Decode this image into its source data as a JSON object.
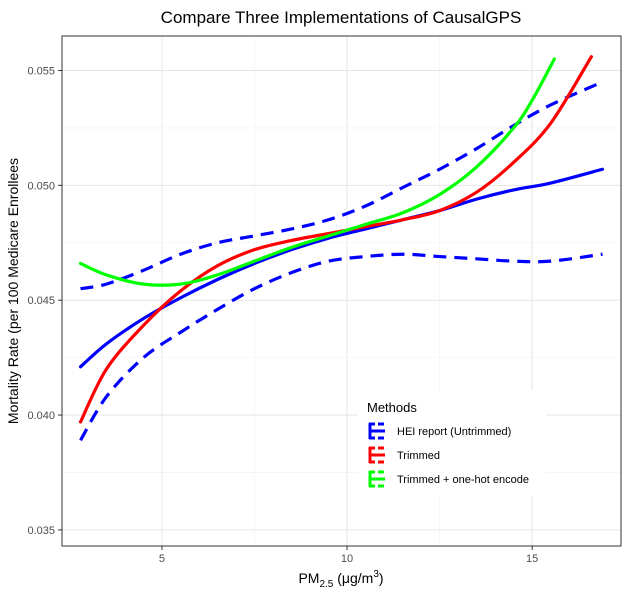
{
  "chart_data": {
    "type": "line",
    "title": "Compare Three Implementations of CausalGPS",
    "xlabel": "PM2.5 (μg/m3)",
    "xlabel_main": "PM",
    "xlabel_sub": "2.5",
    "xlabel_unit_open": " (μg/m",
    "xlabel_unit_sup": "3",
    "xlabel_unit_close": ")",
    "ylabel": "Mortality Rate (per 100 Medicare Enrollees",
    "xlim": [
      2.3,
      17.4
    ],
    "ylim": [
      0.0343,
      0.0565
    ],
    "x_ticks": [
      5,
      10,
      15
    ],
    "x_tick_labels": [
      "5",
      "10",
      "15"
    ],
    "y_ticks": [
      0.035,
      0.04,
      0.045,
      0.05,
      0.055
    ],
    "y_tick_labels": [
      "0.035",
      "0.040",
      "0.045",
      "0.050",
      "0.055"
    ],
    "grid": true,
    "legend": {
      "title": "Methods",
      "position": "bottom-right",
      "entries": [
        {
          "label": "HEI report (Untrimmed)",
          "color": "#0000ff"
        },
        {
          "label": "Trimmed",
          "color": "#ff0000"
        },
        {
          "label": "Trimmed + one-hot encode",
          "color": "#00ff00"
        }
      ]
    },
    "series": [
      {
        "name": "HEI report (Untrimmed)",
        "color": "#0000ff",
        "style": "solid",
        "x": [
          2.8,
          3.5,
          4.5,
          5.5,
          6.5,
          7.5,
          8.5,
          9.5,
          10.5,
          11.5,
          12.5,
          13.5,
          14.5,
          15.5,
          16.9
        ],
        "y": [
          0.0421,
          0.0431,
          0.0442,
          0.0451,
          0.0459,
          0.0466,
          0.0472,
          0.0477,
          0.0481,
          0.0485,
          0.0489,
          0.0494,
          0.0498,
          0.0501,
          0.0507
        ]
      },
      {
        "name": "HEI report (Untrimmed) upper",
        "color": "#0000ff",
        "style": "dashed",
        "x": [
          2.8,
          3.5,
          4.5,
          5.5,
          6.5,
          7.5,
          8.5,
          9.5,
          10.5,
          11.5,
          12.5,
          13.5,
          14.5,
          15.5,
          16.9
        ],
        "y": [
          0.0455,
          0.0457,
          0.0463,
          0.047,
          0.0475,
          0.0478,
          0.0481,
          0.0485,
          0.0491,
          0.0499,
          0.0507,
          0.0516,
          0.0526,
          0.0535,
          0.0545
        ]
      },
      {
        "name": "HEI report (Untrimmed) lower",
        "color": "#0000ff",
        "style": "dashed",
        "x": [
          2.8,
          3.5,
          4.5,
          5.5,
          6.5,
          7.5,
          8.5,
          9.5,
          10.5,
          11.5,
          12.5,
          13.5,
          14.5,
          15.5,
          16.9
        ],
        "y": [
          0.0389,
          0.0408,
          0.0425,
          0.0436,
          0.0446,
          0.0455,
          0.0462,
          0.0467,
          0.0469,
          0.047,
          0.0469,
          0.0468,
          0.0467,
          0.0467,
          0.047
        ]
      },
      {
        "name": "Trimmed",
        "color": "#ff0000",
        "style": "solid",
        "x": [
          2.8,
          3.5,
          4.5,
          5.5,
          6.5,
          7.5,
          8.5,
          9.5,
          10.5,
          11.5,
          12.5,
          13.5,
          14.5,
          15.5,
          16.6
        ],
        "y": [
          0.0397,
          0.042,
          0.0439,
          0.0454,
          0.0465,
          0.0472,
          0.0476,
          0.0479,
          0.0482,
          0.0485,
          0.0489,
          0.0497,
          0.051,
          0.0527,
          0.0556
        ]
      },
      {
        "name": "Trimmed + one-hot encode",
        "color": "#00ff00",
        "style": "solid",
        "x": [
          2.8,
          3.5,
          4.5,
          5.5,
          6.5,
          7.5,
          8.5,
          9.5,
          10.5,
          11.5,
          12.5,
          13.5,
          14.5,
          15.0,
          15.6
        ],
        "y": [
          0.0466,
          0.0461,
          0.0457,
          0.0457,
          0.0461,
          0.0467,
          0.0473,
          0.0478,
          0.0483,
          0.0488,
          0.0496,
          0.0508,
          0.0525,
          0.0537,
          0.0555
        ]
      }
    ]
  }
}
